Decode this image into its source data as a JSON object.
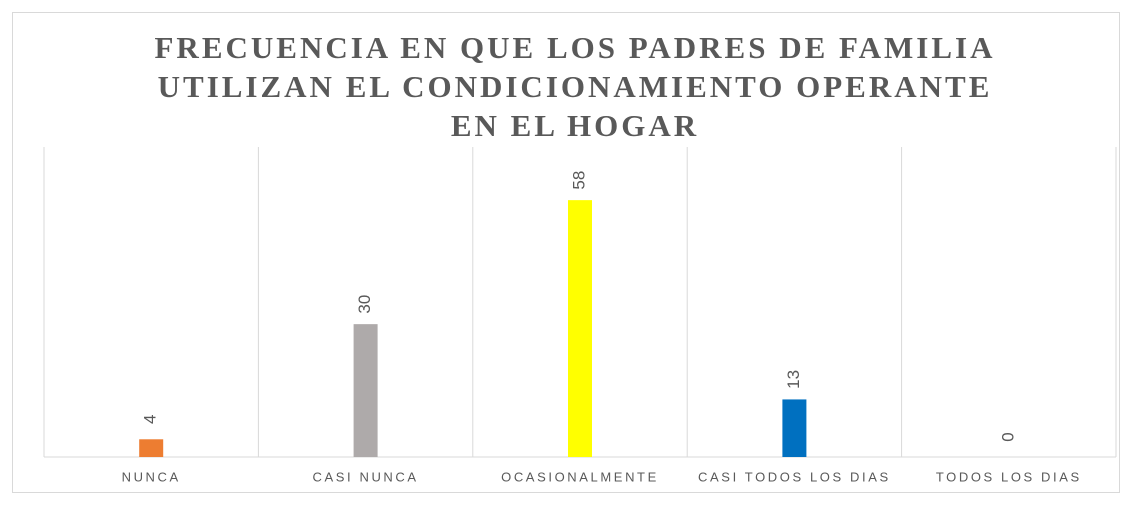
{
  "chart_data": {
    "type": "bar",
    "title": [
      "FRECUENCIA EN QUE LOS PADRES DE FAMILIA",
      "UTILIZAN EL CONDICIONAMIENTO OPERANTE",
      "EN EL HOGAR"
    ],
    "categories": [
      "NUNCA",
      "CASI NUNCA",
      "OCASIONALMENTE",
      "CASI TODOS LOS DIAS",
      "TODOS LOS DIAS"
    ],
    "values": [
      4,
      30,
      58,
      13,
      0
    ],
    "colors": [
      "#ed7d31",
      "#aeaaaa",
      "#ffff00",
      "#0070c0",
      "#5b9bd5"
    ],
    "ylim": [
      0,
      70
    ]
  }
}
